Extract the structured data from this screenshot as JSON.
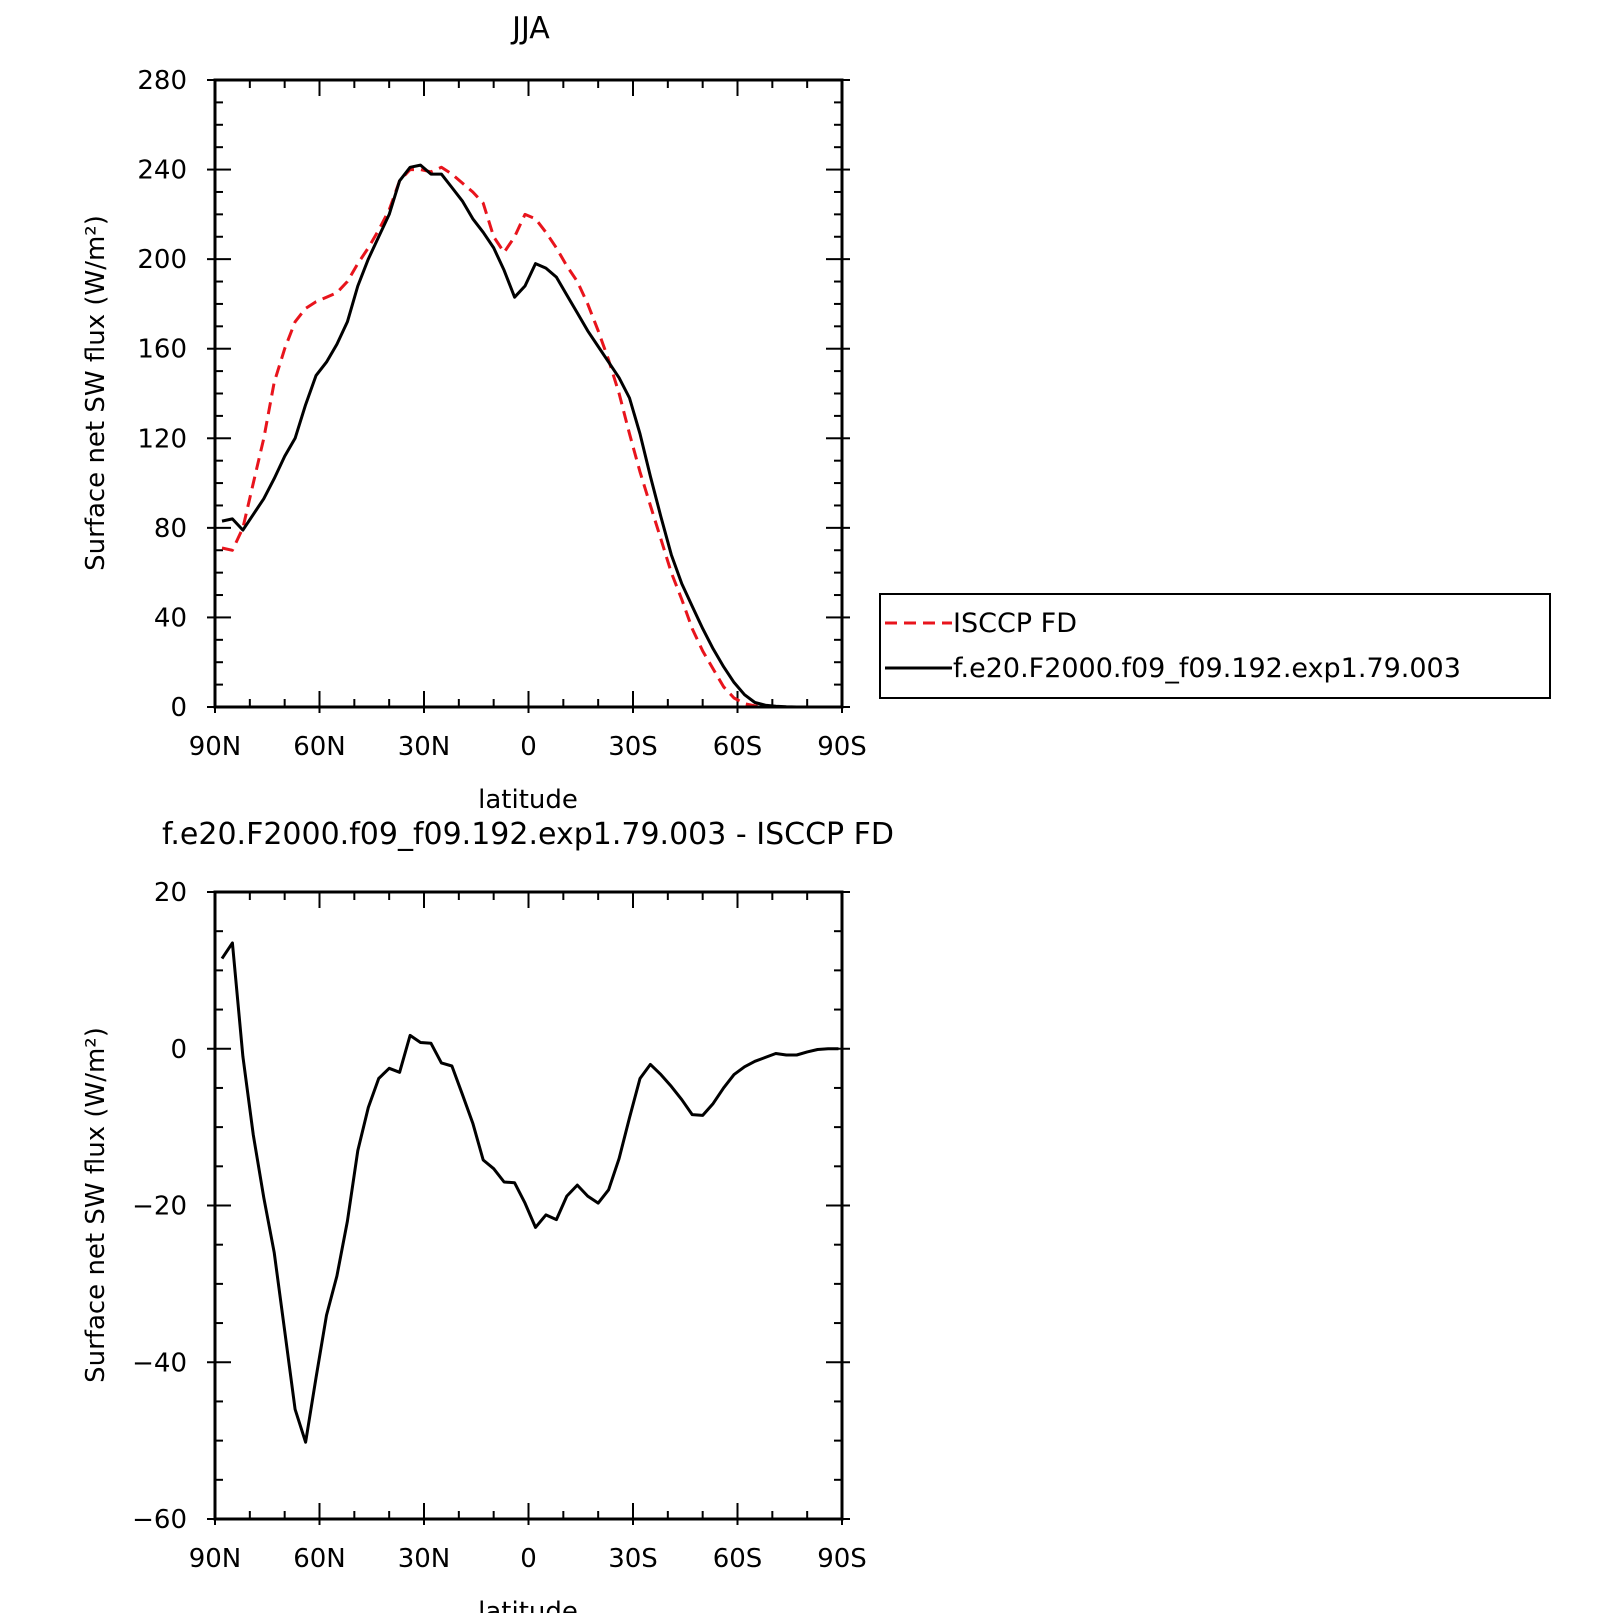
{
  "chart_data": [
    {
      "type": "line",
      "title": "JJA",
      "xlabel": "latitude",
      "ylabel": "Surface net SW flux",
      "ylabel_unit": "(W/m²)",
      "x_direction": "90N to 90S",
      "xlim": [
        90,
        -90
      ],
      "ylim": [
        0,
        280
      ],
      "xticks": [
        {
          "value": 90,
          "label": "90N"
        },
        {
          "value": 60,
          "label": "60N"
        },
        {
          "value": 30,
          "label": "30N"
        },
        {
          "value": 0,
          "label": "0"
        },
        {
          "value": -30,
          "label": "30S"
        },
        {
          "value": -60,
          "label": "60S"
        },
        {
          "value": -90,
          "label": "90S"
        }
      ],
      "yticks": [
        0,
        40,
        80,
        120,
        160,
        200,
        240,
        280
      ],
      "grid": false,
      "legend_position": "right",
      "series": [
        {
          "name": "ISCCP FD",
          "color": "#e8141c",
          "style": "dashed",
          "x": [
            88,
            85,
            82,
            79,
            76,
            73,
            70,
            67,
            64,
            61,
            58,
            55,
            52,
            49,
            46,
            43,
            40,
            37,
            34,
            31,
            28,
            25,
            22,
            19,
            16,
            13,
            10,
            7,
            4,
            1,
            -2,
            -5,
            -8,
            -11,
            -14,
            -17,
            -20,
            -23,
            -26,
            -29,
            -32,
            -35,
            -38,
            -41,
            -44,
            -47,
            -50,
            -53,
            -56,
            -59,
            -62,
            -65,
            -68,
            -71,
            -74,
            -77,
            -80,
            -83,
            -86,
            -89
          ],
          "y": [
            71,
            70,
            80,
            100,
            120,
            145,
            160,
            172,
            178,
            181,
            183,
            185,
            190,
            198,
            205,
            213,
            222,
            235,
            240,
            240,
            239,
            241,
            238,
            234,
            230,
            225,
            210,
            203,
            210,
            220,
            218,
            212,
            205,
            197,
            190,
            180,
            168,
            155,
            140,
            122,
            105,
            90,
            75,
            60,
            48,
            35,
            25,
            17,
            9,
            4,
            1.5,
            0.5,
            0.2,
            0.1,
            0,
            0,
            0,
            0,
            0,
            0
          ]
        },
        {
          "name": "f.e20.F2000.f09_f09.192.exp1.79.003",
          "color": "#000000",
          "style": "solid",
          "x": [
            88,
            85,
            82,
            79,
            76,
            73,
            70,
            67,
            64,
            61,
            58,
            55,
            52,
            49,
            46,
            43,
            40,
            37,
            34,
            31,
            28,
            25,
            22,
            19,
            16,
            13,
            10,
            7,
            4,
            1,
            -2,
            -5,
            -8,
            -11,
            -14,
            -17,
            -20,
            -23,
            -26,
            -29,
            -32,
            -35,
            -38,
            -41,
            -44,
            -47,
            -50,
            -53,
            -56,
            -59,
            -62,
            -65,
            -68,
            -71,
            -74,
            -77,
            -80,
            -83,
            -86,
            -89
          ],
          "y": [
            83,
            84,
            79,
            86,
            93,
            102,
            112,
            120,
            135,
            148,
            154,
            162,
            172,
            188,
            200,
            210,
            220,
            235,
            241,
            242,
            238,
            238,
            232,
            226,
            218,
            212,
            205,
            195,
            183,
            188,
            198,
            196,
            192,
            184,
            176,
            168,
            161,
            154,
            147,
            138,
            122,
            103,
            85,
            68,
            55,
            45,
            35,
            26,
            18,
            11,
            5.5,
            2,
            0.8,
            0.3,
            0.1,
            0,
            0,
            0,
            0,
            0
          ]
        }
      ]
    },
    {
      "type": "line",
      "title": "f.e20.F2000.f09_f09.192.exp1.79.003 - ISCCP FD",
      "xlabel": "latitude",
      "ylabel": "Surface net SW flux",
      "ylabel_unit": "(W/m²)",
      "x_direction": "90N to 90S",
      "xlim": [
        90,
        -90
      ],
      "ylim": [
        -60,
        20
      ],
      "xticks": [
        {
          "value": 90,
          "label": "90N"
        },
        {
          "value": 60,
          "label": "60N"
        },
        {
          "value": 30,
          "label": "30N"
        },
        {
          "value": 0,
          "label": "0"
        },
        {
          "value": -30,
          "label": "30S"
        },
        {
          "value": -60,
          "label": "60S"
        },
        {
          "value": -90,
          "label": "90S"
        }
      ],
      "yticks": [
        -60,
        -40,
        -20,
        0,
        20
      ],
      "grid": false,
      "series": [
        {
          "color": "#000000",
          "style": "solid",
          "x": [
            88,
            85,
            82,
            79,
            76,
            73,
            70,
            67,
            64,
            61,
            58,
            55,
            52,
            49,
            46,
            43,
            40,
            37,
            34,
            31,
            28,
            25,
            22,
            19,
            16,
            13,
            10,
            7,
            4,
            1,
            -2,
            -5,
            -8,
            -11,
            -14,
            -17,
            -20,
            -23,
            -26,
            -29,
            -32,
            -35,
            -38,
            -41,
            -44,
            -47,
            -50,
            -53,
            -56,
            -59,
            -62,
            -65,
            -68,
            -71,
            -74,
            -77,
            -80,
            -83,
            -86,
            -89
          ],
          "y": [
            11.5,
            13.5,
            -1,
            -11,
            -19,
            -26,
            -36,
            -46,
            -50.2,
            -42,
            -34,
            -29,
            -22,
            -13,
            -7.5,
            -3.8,
            -2.5,
            -3,
            1.7,
            0.8,
            0.7,
            -1.8,
            -2.2,
            -5.8,
            -9.5,
            -14.2,
            -15.3,
            -17,
            -17.1,
            -19.7,
            -22.8,
            -21.2,
            -21.8,
            -18.8,
            -17.4,
            -18.8,
            -19.7,
            -18,
            -14,
            -8.8,
            -3.8,
            -2,
            -3.3,
            -4.8,
            -6.5,
            -8.4,
            -8.5,
            -7,
            -5,
            -3.3,
            -2.3,
            -1.6,
            -1.1,
            -0.6,
            -0.8,
            -0.8,
            -0.4,
            -0.1,
            0,
            0
          ]
        }
      ]
    }
  ]
}
